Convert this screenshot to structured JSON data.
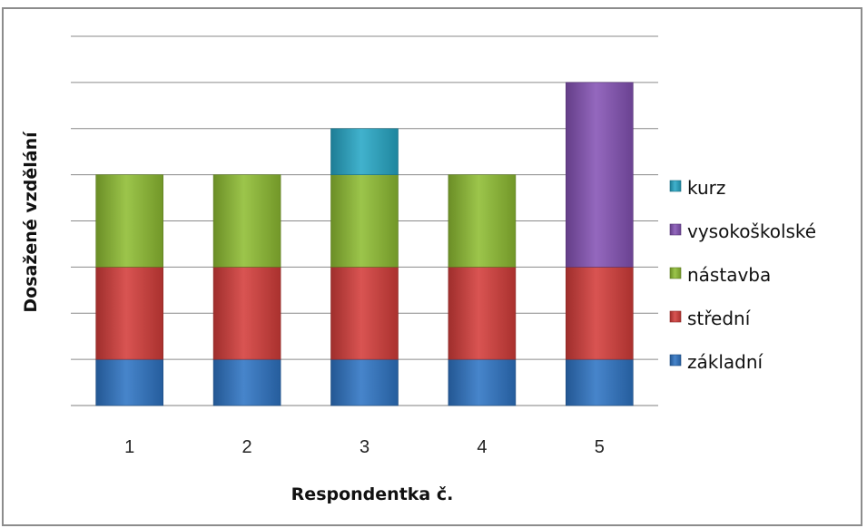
{
  "chart_data": {
    "type": "bar",
    "stacked": true,
    "categories": [
      "1",
      "2",
      "3",
      "4",
      "5"
    ],
    "series": [
      {
        "name": "základní",
        "color": "#2e74c4",
        "values": [
          1,
          1,
          1,
          1,
          1
        ]
      },
      {
        "name": "střední",
        "color": "#d43d3a",
        "values": [
          2,
          2,
          2,
          2,
          2
        ]
      },
      {
        "name": "nástavba",
        "color": "#8fbd32",
        "values": [
          2,
          2,
          2,
          2,
          0
        ]
      },
      {
        "name": "vysokoškolské",
        "color": "#8553b5",
        "values": [
          0,
          0,
          0,
          0,
          4
        ]
      },
      {
        "name": "kurz",
        "color": "#27a7c6",
        "values": [
          0,
          0,
          1,
          0,
          0
        ]
      }
    ],
    "xlabel": "Respondentka č.",
    "ylabel": "Dosažené vzdělání",
    "ylim": [
      0,
      8
    ],
    "grid": true,
    "legend_position": "right",
    "legend_order": [
      "kurz",
      "vysokoškolské",
      "nástavba",
      "střední",
      "základní"
    ]
  }
}
